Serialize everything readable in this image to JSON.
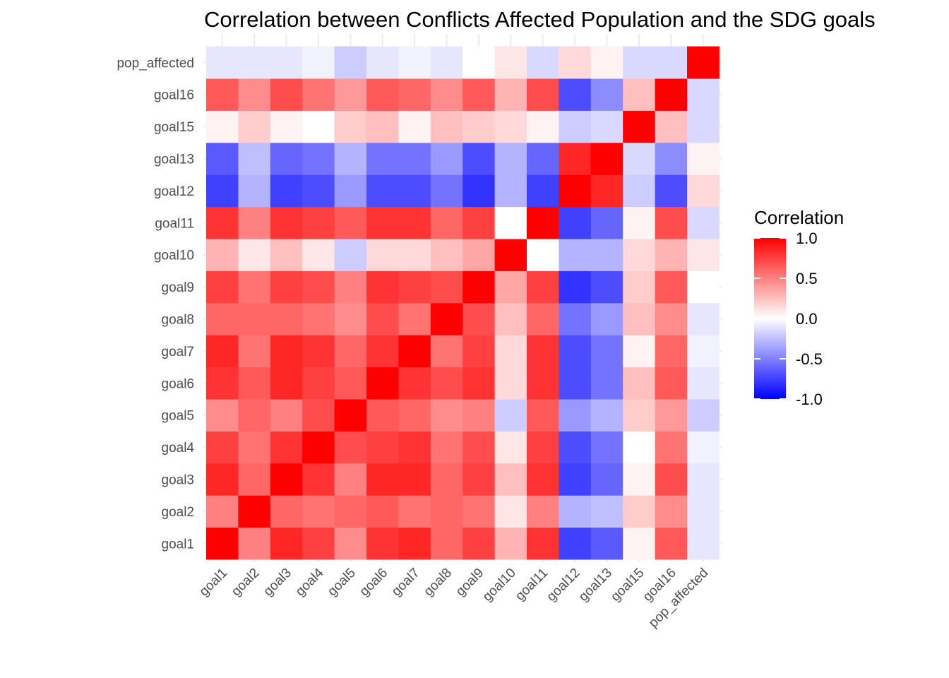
{
  "title": "Correlation between Conflicts Affected Population and the SDG goals",
  "chart_data": {
    "type": "heatmap",
    "x_categories": [
      "goal1",
      "goal2",
      "goal3",
      "goal4",
      "goal5",
      "goal6",
      "goal7",
      "goal8",
      "goal9",
      "goal10",
      "goal11",
      "goal12",
      "goal13",
      "goal15",
      "goal16",
      "pop_affected"
    ],
    "y_categories": [
      "goal1",
      "goal2",
      "goal3",
      "goal4",
      "goal5",
      "goal6",
      "goal7",
      "goal8",
      "goal9",
      "goal10",
      "goal11",
      "goal12",
      "goal13",
      "goal15",
      "goal16",
      "pop_affected"
    ],
    "values": [
      [
        1.0,
        0.5,
        0.85,
        0.75,
        0.45,
        0.8,
        0.85,
        0.6,
        0.75,
        0.3,
        0.8,
        -0.75,
        -0.65,
        0.05,
        0.65,
        -0.1
      ],
      [
        0.5,
        1.0,
        0.6,
        0.55,
        0.6,
        0.65,
        0.55,
        0.6,
        0.55,
        0.1,
        0.5,
        -0.3,
        -0.25,
        0.2,
        0.45,
        -0.1
      ],
      [
        0.85,
        0.6,
        1.0,
        0.8,
        0.5,
        0.85,
        0.85,
        0.6,
        0.75,
        0.25,
        0.8,
        -0.75,
        -0.6,
        0.05,
        0.7,
        -0.1
      ],
      [
        0.75,
        0.55,
        0.8,
        1.0,
        0.7,
        0.75,
        0.8,
        0.55,
        0.7,
        0.1,
        0.75,
        -0.7,
        -0.55,
        0.0,
        0.55,
        -0.05
      ],
      [
        0.45,
        0.6,
        0.5,
        0.7,
        1.0,
        0.65,
        0.6,
        0.45,
        0.5,
        -0.2,
        0.65,
        -0.4,
        -0.3,
        0.2,
        0.4,
        -0.2
      ],
      [
        0.8,
        0.65,
        0.85,
        0.75,
        0.65,
        1.0,
        0.8,
        0.7,
        0.8,
        0.15,
        0.8,
        -0.7,
        -0.55,
        0.25,
        0.65,
        -0.1
      ],
      [
        0.85,
        0.55,
        0.85,
        0.8,
        0.6,
        0.8,
        1.0,
        0.55,
        0.75,
        0.15,
        0.8,
        -0.7,
        -0.55,
        0.05,
        0.6,
        -0.05
      ],
      [
        0.6,
        0.6,
        0.6,
        0.55,
        0.45,
        0.7,
        0.55,
        1.0,
        0.7,
        0.25,
        0.6,
        -0.55,
        -0.4,
        0.25,
        0.45,
        -0.1
      ],
      [
        0.75,
        0.55,
        0.75,
        0.7,
        0.5,
        0.8,
        0.75,
        0.7,
        1.0,
        0.35,
        0.75,
        -0.8,
        -0.7,
        0.2,
        0.65,
        0.0
      ],
      [
        0.3,
        0.1,
        0.25,
        0.1,
        -0.2,
        0.15,
        0.15,
        0.25,
        0.35,
        1.0,
        0.0,
        -0.3,
        -0.3,
        0.15,
        0.3,
        0.1
      ],
      [
        0.8,
        0.5,
        0.8,
        0.75,
        0.65,
        0.8,
        0.8,
        0.6,
        0.75,
        0.0,
        1.0,
        -0.75,
        -0.6,
        0.05,
        0.7,
        -0.15
      ],
      [
        -0.75,
        -0.3,
        -0.75,
        -0.7,
        -0.4,
        -0.7,
        -0.7,
        -0.55,
        -0.8,
        -0.3,
        -0.75,
        1.0,
        0.85,
        -0.2,
        -0.7,
        0.15
      ],
      [
        -0.65,
        -0.25,
        -0.6,
        -0.55,
        -0.3,
        -0.55,
        -0.55,
        -0.4,
        -0.7,
        -0.3,
        -0.6,
        0.85,
        1.0,
        -0.15,
        -0.45,
        0.05
      ],
      [
        0.05,
        0.2,
        0.05,
        0.0,
        0.2,
        0.25,
        0.05,
        0.25,
        0.2,
        0.15,
        0.05,
        -0.2,
        -0.15,
        1.0,
        0.25,
        -0.15
      ],
      [
        0.65,
        0.45,
        0.7,
        0.55,
        0.4,
        0.65,
        0.6,
        0.45,
        0.65,
        0.3,
        0.7,
        -0.7,
        -0.45,
        0.25,
        1.0,
        -0.15
      ],
      [
        -0.1,
        -0.1,
        -0.1,
        -0.05,
        -0.2,
        -0.1,
        -0.05,
        -0.1,
        0.0,
        0.1,
        -0.15,
        0.15,
        0.05,
        -0.15,
        -0.15,
        1.0
      ]
    ],
    "legend": {
      "title": "Correlation",
      "ticks": [
        "1.0",
        "0.5",
        "0.0",
        "-0.5",
        "-1.0"
      ],
      "range": [
        -1.0,
        1.0
      ],
      "low_color": "#0000FF",
      "mid_color": "#FFFFFF",
      "high_color": "#FF0000",
      "placement": "right"
    },
    "xlabel": "",
    "ylabel": "",
    "grid": true
  }
}
